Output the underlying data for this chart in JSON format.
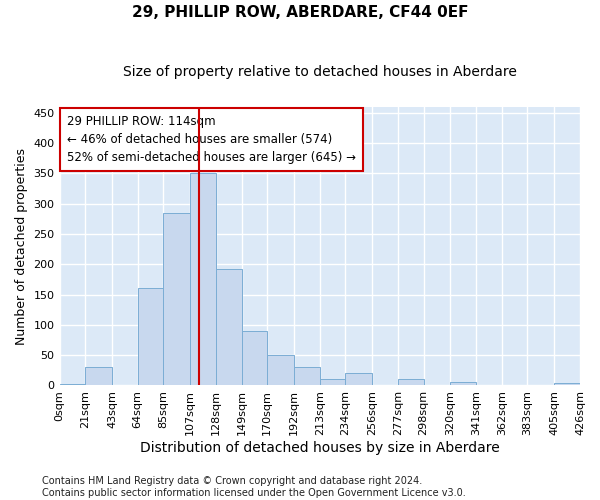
{
  "title": "29, PHILLIP ROW, ABERDARE, CF44 0EF",
  "subtitle": "Size of property relative to detached houses in Aberdare",
  "xlabel": "Distribution of detached houses by size in Aberdare",
  "ylabel": "Number of detached properties",
  "bar_color": "#c8d8ee",
  "bar_edge_color": "#7badd4",
  "plot_bg_color": "#dce9f7",
  "fig_bg_color": "#ffffff",
  "grid_color": "#ffffff",
  "property_size": 114,
  "vline_color": "#cc0000",
  "annotation_line1": "29 PHILLIP ROW: 114sqm",
  "annotation_line2": "← 46% of detached houses are smaller (574)",
  "annotation_line3": "52% of semi-detached houses are larger (645) →",
  "annotation_box_facecolor": "#ffffff",
  "annotation_box_edgecolor": "#cc0000",
  "ylim_max": 460,
  "yticks": [
    0,
    50,
    100,
    150,
    200,
    250,
    300,
    350,
    400,
    450
  ],
  "bin_edges": [
    0,
    21,
    43,
    64,
    85,
    107,
    128,
    149,
    170,
    192,
    213,
    234,
    256,
    277,
    298,
    320,
    341,
    362,
    383,
    405,
    426
  ],
  "bin_labels": [
    "0sqm",
    "21sqm",
    "43sqm",
    "64sqm",
    "85sqm",
    "107sqm",
    "128sqm",
    "149sqm",
    "170sqm",
    "192sqm",
    "213sqm",
    "234sqm",
    "256sqm",
    "277sqm",
    "298sqm",
    "320sqm",
    "341sqm",
    "362sqm",
    "383sqm",
    "405sqm",
    "426sqm"
  ],
  "bar_heights": [
    2,
    30,
    0,
    160,
    285,
    350,
    192,
    90,
    50,
    30,
    10,
    20,
    0,
    10,
    0,
    5,
    0,
    0,
    0,
    4
  ],
  "footer_line1": "Contains HM Land Registry data © Crown copyright and database right 2024.",
  "footer_line2": "Contains public sector information licensed under the Open Government Licence v3.0.",
  "title_fontsize": 11,
  "subtitle_fontsize": 10,
  "xlabel_fontsize": 10,
  "ylabel_fontsize": 9,
  "tick_fontsize": 8,
  "footer_fontsize": 7,
  "annotation_fontsize": 8.5
}
